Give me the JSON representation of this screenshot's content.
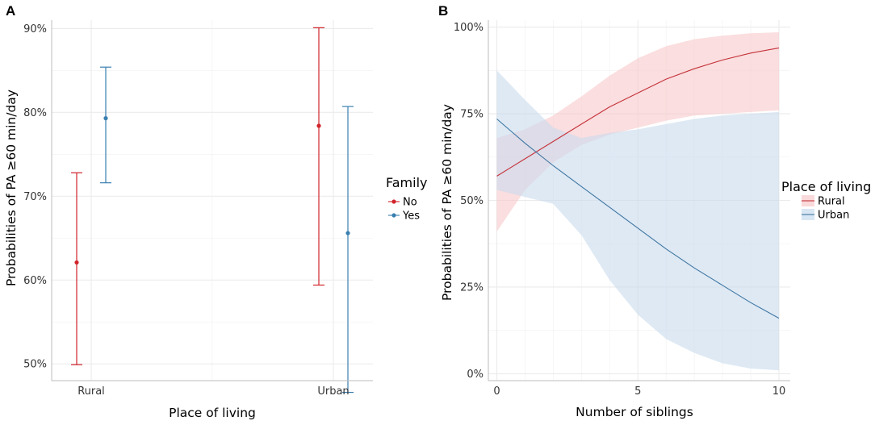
{
  "colors": {
    "no": "#d0242b",
    "yes": "#3a7fb0",
    "rural": "#c4323b",
    "urban": "#3f76a2",
    "rural_ribbon": "#f8c9cc",
    "urban_ribbon": "#c9dcee"
  },
  "chart_data": [
    {
      "panel": "A",
      "type": "errorbar",
      "xlabel": "Place of living",
      "ylabel": "Probabilities of PA ≥60 min/day",
      "categories": [
        "Rural",
        "Urban"
      ],
      "ylim": [
        0.48,
        0.91
      ],
      "yticks": [
        0.5,
        0.6,
        0.7,
        0.8,
        0.9
      ],
      "ytick_labels": [
        "50%",
        "60%",
        "70%",
        "80%",
        "90%"
      ],
      "legend": {
        "title": "Family",
        "entries": [
          "No",
          "Yes"
        ]
      },
      "series": [
        {
          "name": "No",
          "color_key": "no",
          "points": [
            {
              "category": "Rural",
              "y": 0.621,
              "lower": 0.499,
              "upper": 0.728
            },
            {
              "category": "Urban",
              "y": 0.784,
              "lower": 0.594,
              "upper": 0.901
            }
          ]
        },
        {
          "name": "Yes",
          "color_key": "yes",
          "points": [
            {
              "category": "Rural",
              "y": 0.793,
              "lower": 0.716,
              "upper": 0.854
            },
            {
              "category": "Urban",
              "y": 0.656,
              "lower": 0.466,
              "upper": 0.807
            }
          ]
        }
      ]
    },
    {
      "panel": "B",
      "type": "line",
      "xlabel": "Number of siblings",
      "ylabel": "Probabilities of PA ≥60 min/day",
      "xlim": [
        -0.3,
        10.4
      ],
      "ylim": [
        -0.02,
        1.02
      ],
      "xticks": [
        0,
        5,
        10
      ],
      "xtick_labels": [
        "0",
        "5",
        "10"
      ],
      "yticks": [
        0,
        0.25,
        0.5,
        0.75,
        1.0
      ],
      "ytick_labels": [
        "0%",
        "25%",
        "50%",
        "75%",
        "100%"
      ],
      "legend": {
        "title": "Place of living",
        "entries": [
          "Rural",
          "Urban"
        ]
      },
      "x": [
        0,
        1,
        2,
        3,
        4,
        5,
        6,
        7,
        8,
        9,
        10
      ],
      "series": [
        {
          "name": "Rural",
          "color_key": "rural",
          "ribbon_key": "rural_ribbon",
          "values": [
            0.57,
            0.62,
            0.67,
            0.72,
            0.77,
            0.81,
            0.85,
            0.88,
            0.905,
            0.925,
            0.94
          ],
          "lower": [
            0.41,
            0.53,
            0.61,
            0.66,
            0.69,
            0.71,
            0.73,
            0.745,
            0.75,
            0.755,
            0.76
          ],
          "upper": [
            0.68,
            0.705,
            0.745,
            0.8,
            0.86,
            0.91,
            0.945,
            0.965,
            0.975,
            0.982,
            0.985
          ]
        },
        {
          "name": "Urban",
          "color_key": "urban",
          "ribbon_key": "urban_ribbon",
          "values": [
            0.735,
            0.665,
            0.6,
            0.54,
            0.48,
            0.42,
            0.36,
            0.305,
            0.255,
            0.205,
            0.16
          ],
          "lower": [
            0.53,
            0.51,
            0.49,
            0.4,
            0.27,
            0.17,
            0.1,
            0.06,
            0.03,
            0.015,
            0.01
          ],
          "upper": [
            0.875,
            0.79,
            0.71,
            0.68,
            0.695,
            0.705,
            0.72,
            0.735,
            0.745,
            0.75,
            0.755
          ]
        }
      ]
    }
  ]
}
